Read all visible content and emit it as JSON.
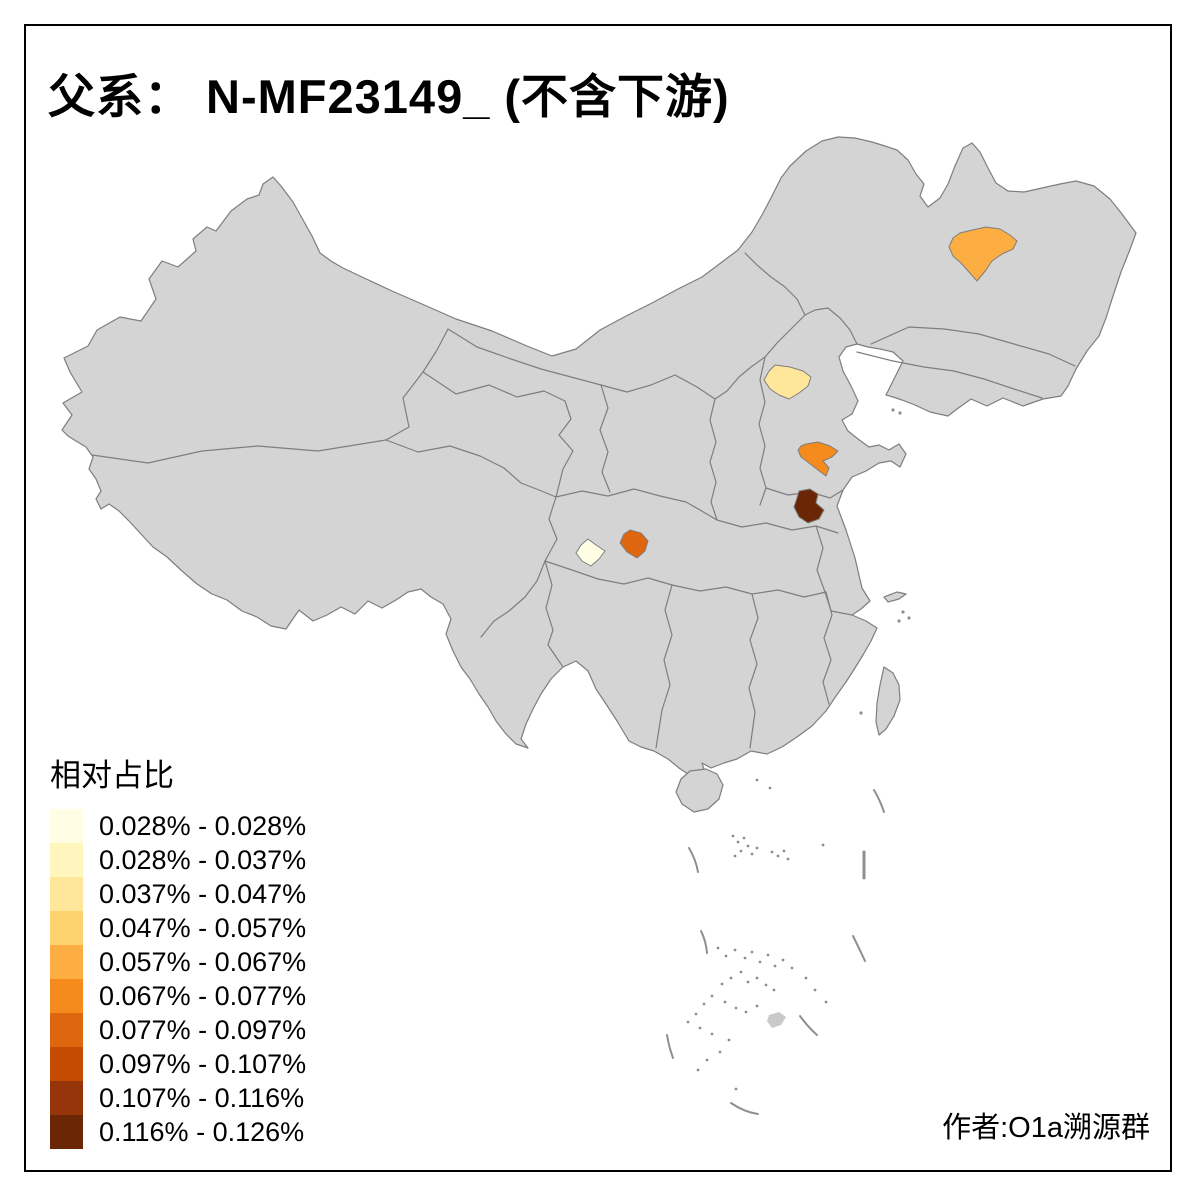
{
  "title": "父系： N-MF23149_ (不含下游)",
  "attribution": "作者:O1a溯源群",
  "legend": {
    "title": "相对占比",
    "items": [
      {
        "label": "0.028% - 0.028%",
        "color": "#FFFEE5"
      },
      {
        "label": "0.028% - 0.037%",
        "color": "#FFF6BE"
      },
      {
        "label": "0.037% - 0.047%",
        "color": "#FEE79B"
      },
      {
        "label": "0.047% - 0.057%",
        "color": "#FDD26F"
      },
      {
        "label": "0.057% - 0.067%",
        "color": "#FDAE42"
      },
      {
        "label": "0.067% - 0.077%",
        "color": "#F58A1D"
      },
      {
        "label": "0.077% - 0.097%",
        "color": "#DD660F"
      },
      {
        "label": "0.097% - 0.107%",
        "color": "#C54B02"
      },
      {
        "label": "0.107% - 0.116%",
        "color": "#97350A"
      },
      {
        "label": "0.116% - 0.126%",
        "color": "#6B2606"
      }
    ]
  },
  "map": {
    "land_color": "#d4d4d4",
    "border_color": "#7e7e7e",
    "sea_color": "#ffffff",
    "highlighted_regions": [
      {
        "area": "northeast-heilongjiang",
        "bucket": "0.057% - 0.067%",
        "color": "#FDAE42"
      },
      {
        "area": "hebei-central",
        "bucket": "0.037% - 0.047%",
        "color": "#FEE79B"
      },
      {
        "area": "shandong-west",
        "bucket": "0.067% - 0.077%",
        "color": "#F58A1D"
      },
      {
        "area": "henan-east",
        "bucket": "0.116% - 0.126%",
        "color": "#6B2606"
      },
      {
        "area": "sichuan-west",
        "bucket": "0.028% - 0.028%",
        "color": "#FFFEE5"
      },
      {
        "area": "sichuan-east",
        "bucket": "0.077% - 0.097%",
        "color": "#DD660F"
      }
    ]
  }
}
